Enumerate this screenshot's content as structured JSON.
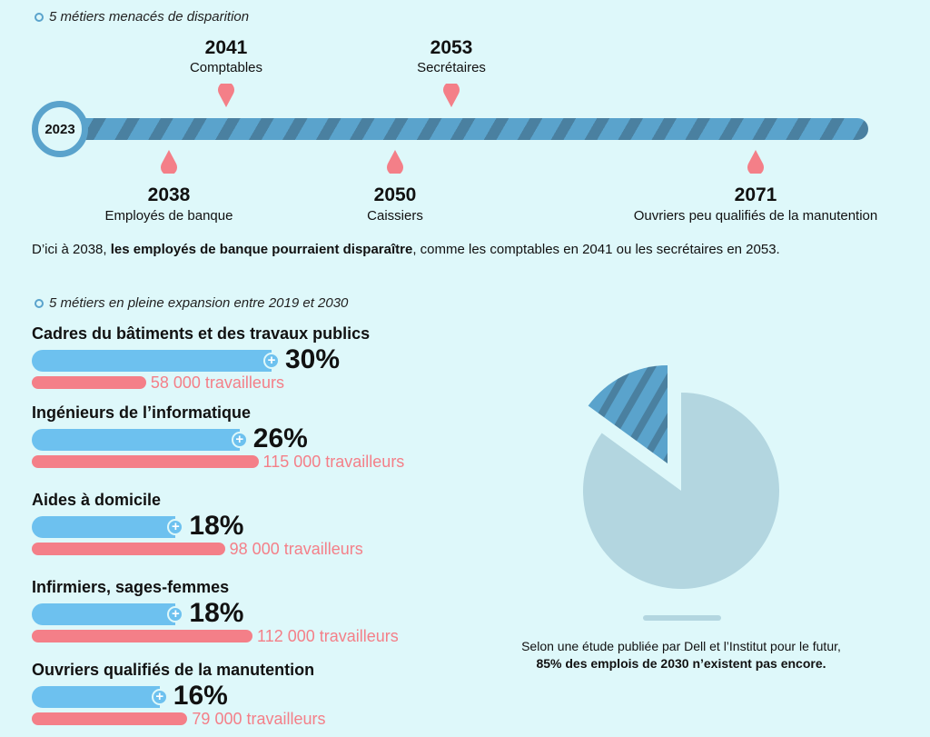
{
  "timeline": {
    "section_title": "5 métiers menacés de disparition",
    "start_year": "2023",
    "events": [
      {
        "year": "2041",
        "label": "Comptables",
        "side": "top"
      },
      {
        "year": "2053",
        "label": "Secrétaires",
        "side": "top"
      },
      {
        "year": "2038",
        "label": "Employés de banque",
        "side": "bottom"
      },
      {
        "year": "2050",
        "label": "Caissiers",
        "side": "bottom"
      },
      {
        "year": "2071",
        "label": "Ouvriers peu qualifiés de la manutention",
        "side": "bottom"
      }
    ],
    "summary_prefix": "D’ici à 2038, ",
    "summary_bold": "les employés de banque pourraient disparaître",
    "summary_suffix": ", comme les comptables en 2041 ou les secrétaires en 2053."
  },
  "chart_data": [
    {
      "type": "bar",
      "title": "5 métiers en pleine expansion entre 2019 et 2030",
      "categories": [
        "Cadres du bâtiments et des travaux publics",
        "Ingénieurs de l’informatique",
        "Aides à domicile",
        "Infirmiers, sages-femmes",
        "Ouvriers qualifiés de la manutention"
      ],
      "series": [
        {
          "values": [
            30,
            26,
            18,
            18,
            16
          ],
          "labels": [
            "30%",
            "26%",
            "18%",
            "18%",
            "16%"
          ],
          "color": "#6dc1ef"
        },
        {
          "values": [
            58000,
            115000,
            98000,
            112000,
            79000
          ],
          "labels": [
            "58 000 travailleurs",
            "115 000 travailleurs",
            "98 000 travailleurs",
            "112 000 travailleurs",
            "79 000 travailleurs"
          ],
          "color": "#f47f88"
        }
      ]
    },
    {
      "type": "pie",
      "values": [
        85,
        15
      ],
      "colors": [
        "#b3d6e0",
        "#5aa3cc"
      ],
      "caption_line1": "Selon une étude publiée par Dell et l’Institut pour le futur,",
      "caption_bold": "85% des emplois de 2030 n’existent pas encore."
    }
  ],
  "colors": {
    "background": "#def8fa",
    "timeline": "#5aa3cc",
    "stripe": "#4a80a0",
    "pin": "#f47f88"
  }
}
